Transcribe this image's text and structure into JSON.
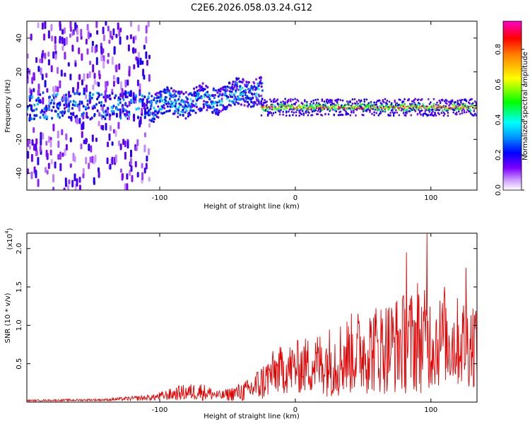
{
  "chart_data": [
    {
      "type": "heatmap",
      "title": "C2E6.2026.058.03.24.G12",
      "xlabel": "Height of straight line (km)",
      "ylabel": "Frequency (Hz)",
      "xlim": [
        -198,
        134
      ],
      "ylim": [
        -50,
        50
      ],
      "xticks": [
        -100,
        0,
        100
      ],
      "yticks": [
        40,
        20,
        0,
        -20,
        -40
      ],
      "colorbar": {
        "label": "Normalized spectral amplitude",
        "range": [
          0,
          0.96
        ],
        "ticks": [
          0.0,
          0.2,
          0.4,
          0.6,
          0.8
        ]
      },
      "regions": [
        {
          "name": "broadband noise",
          "x_range": [
            -198,
            -108
          ],
          "freq_spread": 50,
          "amplitude_range": [
            0.05,
            0.2
          ]
        },
        {
          "name": "wavy drift band",
          "x_range": [
            -108,
            -25
          ],
          "center_freq": [
            0,
            3,
            6,
            10
          ],
          "amplitude_range": [
            0.1,
            0.45
          ]
        },
        {
          "name": "stable carrier",
          "x_range": [
            -25,
            134
          ],
          "center_freq": -1,
          "amplitude_range": [
            0.5,
            0.95
          ]
        }
      ]
    },
    {
      "type": "line",
      "xlabel": "Height of straight line (km)",
      "ylabel": "SNR (10 * v/v)",
      "scale_label": "(x10",
      "scale_exponent": "4",
      "color": "#ff0000",
      "xlim": [
        -198,
        134
      ],
      "ylim": [
        0,
        2.2
      ],
      "xticks": [
        -100,
        0,
        100
      ],
      "yticks": [
        0.5,
        1.0,
        1.5,
        2.0
      ],
      "ytick_labels": [
        "0.5",
        "1.0",
        "1.5",
        "2.0"
      ],
      "envelope": {
        "x": [
          -198,
          -140,
          -105,
          -85,
          -70,
          -55,
          -35,
          -25,
          -15,
          0,
          15,
          30,
          45,
          60,
          75,
          90,
          100,
          115,
          134
        ],
        "mean": [
          0.02,
          0.03,
          0.06,
          0.12,
          0.14,
          0.08,
          0.15,
          0.25,
          0.4,
          0.45,
          0.5,
          0.55,
          0.65,
          0.7,
          0.75,
          0.8,
          0.8,
          0.78,
          0.78
        ],
        "spread": [
          0.01,
          0.015,
          0.04,
          0.1,
          0.12,
          0.06,
          0.15,
          0.25,
          0.3,
          0.35,
          0.4,
          0.5,
          0.55,
          0.6,
          0.65,
          0.7,
          0.65,
          0.6,
          0.6
        ]
      },
      "peaks": [
        {
          "x": 82,
          "y": 1.95
        },
        {
          "x": 97,
          "y": 2.2
        },
        {
          "x": 126,
          "y": 1.75
        },
        {
          "x": 90,
          "y": 1.55
        },
        {
          "x": 110,
          "y": 1.5
        }
      ]
    }
  ]
}
